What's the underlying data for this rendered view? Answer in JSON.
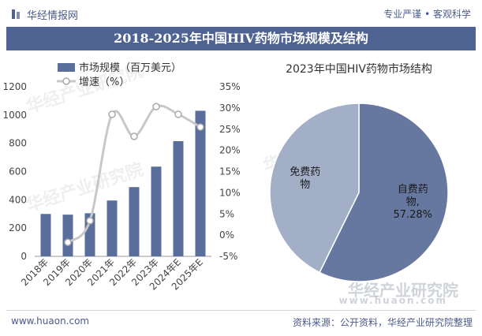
{
  "header": {
    "brand": "华经情报网",
    "slogan": "专业严谨 • 客观科学"
  },
  "title": "2018-2025年中国HIV药物市场规模及结构",
  "footer": {
    "url": "www.huaon.com",
    "source": "资料来源：公开资料，华经产业研究院整理"
  },
  "watermark": {
    "text": "华经产业研究院",
    "url": "www.huaon.com"
  },
  "colors": {
    "accent": "#4e6391",
    "bar": "#5a6e9b",
    "line": "#c8c8c8",
    "pie_self": "#66789f",
    "pie_free": "#a3afc6"
  },
  "chart_data": [
    {
      "type": "bar",
      "categories": [
        "2018年",
        "2019年",
        "2020年",
        "2021年",
        "2022年",
        "2023年",
        "2024年E",
        "2025年E"
      ],
      "series": [
        {
          "name": "市场规模（百万美元）",
          "type": "bar",
          "axis": "left",
          "values": [
            300,
            295,
            305,
            395,
            490,
            635,
            815,
            1030
          ]
        },
        {
          "name": "增速（%）",
          "type": "line",
          "axis": "right",
          "values": [
            null,
            -1.7,
            3.4,
            28.5,
            23.3,
            30.3,
            28.5,
            25.5
          ]
        }
      ],
      "left_axis": {
        "ylim": [
          0,
          1200
        ],
        "ticks": [
          "0",
          "200",
          "400",
          "600",
          "800",
          "1000",
          "1200"
        ]
      },
      "right_axis": {
        "ylim": [
          -5,
          35
        ],
        "ticks": [
          "-5%",
          "0%",
          "5%",
          "10%",
          "15%",
          "20%",
          "25%",
          "30%",
          "35%"
        ]
      },
      "legend": "top-left"
    },
    {
      "type": "pie",
      "title": "2023年中国HIV药物市场结构",
      "slices": [
        {
          "name": "自费药物",
          "value": 57.28,
          "label_pct": "57.28%"
        },
        {
          "name": "免费药物",
          "value": 42.72
        }
      ]
    }
  ]
}
